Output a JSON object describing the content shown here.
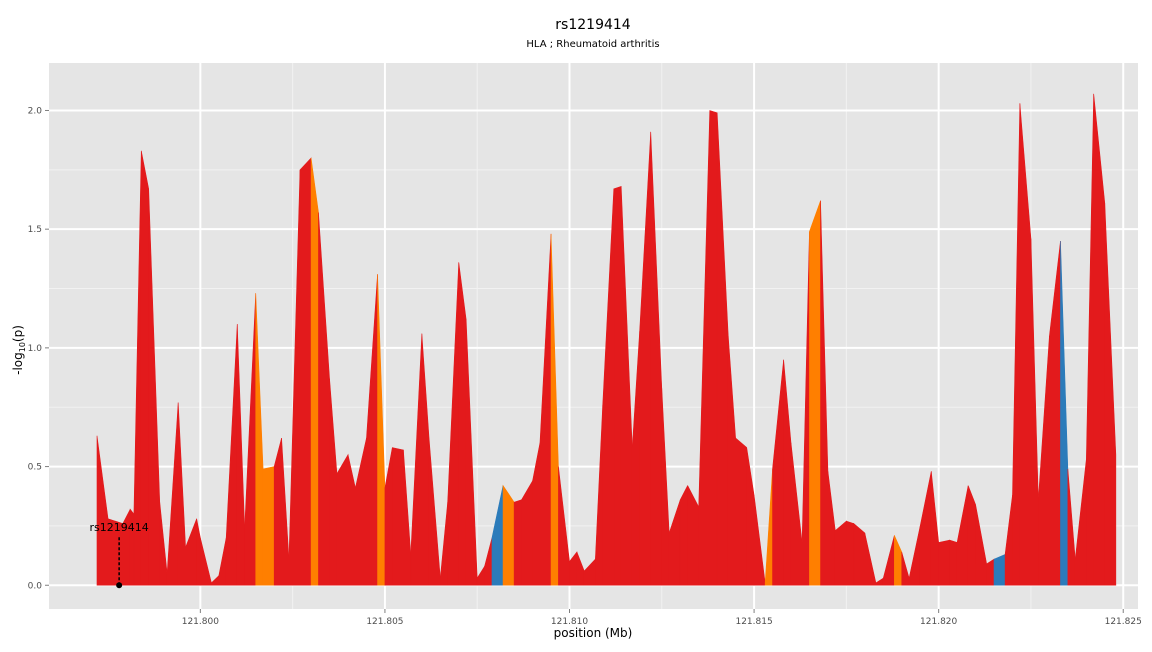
{
  "chart_data": {
    "type": "area",
    "title": "rs1219414",
    "subtitle": "HLA ; Rheumatoid arthritis",
    "xlabel": "position (Mb)",
    "ylabel_main": "-log",
    "ylabel_sub": "10",
    "ylabel_tail": "(p)",
    "xlim": [
      121.7959,
      121.8254
    ],
    "ylim": [
      -0.1,
      2.2
    ],
    "x_ticks": [
      121.8,
      121.805,
      121.81,
      121.815,
      121.82,
      121.825
    ],
    "x_tick_labels": [
      "121.800",
      "121.805",
      "121.810",
      "121.815",
      "121.820",
      "121.825"
    ],
    "y_ticks": [
      0.0,
      0.5,
      1.0,
      1.5,
      2.0
    ],
    "y_tick_labels": [
      "0.0",
      "0.5",
      "1.0",
      "1.5",
      "2.0"
    ],
    "grid": true,
    "colors": {
      "panel": "#e5e5e5",
      "grid_major": "#ffffff",
      "grid_minor": "#f2f2f2",
      "red": "#e31a1c",
      "orange": "#ff7f00",
      "blue": "#2b7bba",
      "text": "#000000",
      "tick_text": "#4d4d4d"
    },
    "points": [
      [
        121.7972,
        0.63,
        "red"
      ],
      [
        121.7975,
        0.28,
        "red"
      ],
      [
        121.7977,
        0.27,
        "red"
      ],
      [
        121.7979,
        0.26,
        "red"
      ],
      [
        121.7981,
        0.32,
        "red"
      ],
      [
        121.7982,
        0.3,
        "red"
      ],
      [
        121.7984,
        1.83,
        "red"
      ],
      [
        121.7986,
        1.67,
        "red"
      ],
      [
        121.7989,
        0.35,
        "red"
      ],
      [
        121.7991,
        0.05,
        "red"
      ],
      [
        121.7994,
        0.77,
        "red"
      ],
      [
        121.7996,
        0.16,
        "red"
      ],
      [
        121.7999,
        0.28,
        "red"
      ],
      [
        121.8,
        0.2,
        "red"
      ],
      [
        121.8003,
        0.01,
        "red"
      ],
      [
        121.8005,
        0.04,
        "red"
      ],
      [
        121.8007,
        0.2,
        "red"
      ],
      [
        121.801,
        1.1,
        "red"
      ],
      [
        121.8012,
        0.24,
        "red"
      ],
      [
        121.8015,
        1.23,
        "orange"
      ],
      [
        121.8017,
        0.49,
        "orange"
      ],
      [
        121.802,
        0.5,
        "red"
      ],
      [
        121.8022,
        0.62,
        "red"
      ],
      [
        121.8024,
        0.11,
        "red"
      ],
      [
        121.8027,
        1.75,
        "red"
      ],
      [
        121.803,
        1.8,
        "orange"
      ],
      [
        121.8032,
        1.57,
        "red"
      ],
      [
        121.8035,
        0.87,
        "red"
      ],
      [
        121.8037,
        0.47,
        "red"
      ],
      [
        121.804,
        0.55,
        "red"
      ],
      [
        121.8042,
        0.41,
        "red"
      ],
      [
        121.8045,
        0.62,
        "red"
      ],
      [
        121.8048,
        1.31,
        "orange"
      ],
      [
        121.805,
        0.41,
        "red"
      ],
      [
        121.8052,
        0.58,
        "red"
      ],
      [
        121.8055,
        0.57,
        "red"
      ],
      [
        121.8057,
        0.13,
        "red"
      ],
      [
        121.806,
        1.06,
        "red"
      ],
      [
        121.8062,
        0.61,
        "red"
      ],
      [
        121.8065,
        0.03,
        "red"
      ],
      [
        121.8067,
        0.35,
        "red"
      ],
      [
        121.807,
        1.36,
        "red"
      ],
      [
        121.8072,
        1.12,
        "red"
      ],
      [
        121.8075,
        0.03,
        "red"
      ],
      [
        121.8077,
        0.08,
        "red"
      ],
      [
        121.8079,
        0.2,
        "blue"
      ],
      [
        121.8082,
        0.42,
        "orange"
      ],
      [
        121.8085,
        0.35,
        "red"
      ],
      [
        121.8087,
        0.36,
        "red"
      ],
      [
        121.809,
        0.44,
        "red"
      ],
      [
        121.8092,
        0.6,
        "red"
      ],
      [
        121.8095,
        1.48,
        "orange"
      ],
      [
        121.8097,
        0.5,
        "red"
      ],
      [
        121.81,
        0.1,
        "red"
      ],
      [
        121.8102,
        0.14,
        "red"
      ],
      [
        121.8104,
        0.06,
        "red"
      ],
      [
        121.8107,
        0.11,
        "red"
      ],
      [
        121.8109,
        0.76,
        "red"
      ],
      [
        121.8112,
        1.67,
        "red"
      ],
      [
        121.8114,
        1.68,
        "red"
      ],
      [
        121.8117,
        0.58,
        "red"
      ],
      [
        121.8119,
        1.07,
        "red"
      ],
      [
        121.8122,
        1.91,
        "red"
      ],
      [
        121.8125,
        0.83,
        "red"
      ],
      [
        121.8127,
        0.22,
        "red"
      ],
      [
        121.813,
        0.36,
        "red"
      ],
      [
        121.8132,
        0.42,
        "red"
      ],
      [
        121.8135,
        0.33,
        "red"
      ],
      [
        121.8138,
        2.0,
        "red"
      ],
      [
        121.814,
        1.99,
        "red"
      ],
      [
        121.8143,
        1.05,
        "red"
      ],
      [
        121.8145,
        0.62,
        "red"
      ],
      [
        121.8148,
        0.58,
        "red"
      ],
      [
        121.815,
        0.38,
        "red"
      ],
      [
        121.8153,
        0.01,
        "orange"
      ],
      [
        121.8155,
        0.49,
        "red"
      ],
      [
        121.8158,
        0.95,
        "red"
      ],
      [
        121.816,
        0.6,
        "red"
      ],
      [
        121.8163,
        0.18,
        "red"
      ],
      [
        121.8165,
        1.49,
        "orange"
      ],
      [
        121.8168,
        1.62,
        "red"
      ],
      [
        121.817,
        0.48,
        "red"
      ],
      [
        121.8172,
        0.23,
        "red"
      ],
      [
        121.8175,
        0.27,
        "red"
      ],
      [
        121.8177,
        0.26,
        "red"
      ],
      [
        121.818,
        0.22,
        "red"
      ],
      [
        121.8183,
        0.01,
        "red"
      ],
      [
        121.8185,
        0.03,
        "red"
      ],
      [
        121.8188,
        0.21,
        "orange"
      ],
      [
        121.819,
        0.14,
        "red"
      ],
      [
        121.8192,
        0.03,
        "red"
      ],
      [
        121.8195,
        0.25,
        "red"
      ],
      [
        121.8198,
        0.48,
        "red"
      ],
      [
        121.82,
        0.18,
        "red"
      ],
      [
        121.8203,
        0.19,
        "red"
      ],
      [
        121.8205,
        0.18,
        "red"
      ],
      [
        121.8208,
        0.42,
        "red"
      ],
      [
        121.821,
        0.34,
        "red"
      ],
      [
        121.8213,
        0.09,
        "red"
      ],
      [
        121.8215,
        0.11,
        "blue"
      ],
      [
        121.8218,
        0.13,
        "red"
      ],
      [
        121.822,
        0.38,
        "red"
      ],
      [
        121.8222,
        2.03,
        "red"
      ],
      [
        121.8225,
        1.46,
        "red"
      ],
      [
        121.8227,
        0.36,
        "red"
      ],
      [
        121.823,
        1.05,
        "red"
      ],
      [
        121.8233,
        1.45,
        "blue"
      ],
      [
        121.8235,
        0.49,
        "red"
      ],
      [
        121.8237,
        0.11,
        "red"
      ],
      [
        121.824,
        0.53,
        "red"
      ],
      [
        121.8242,
        2.07,
        "red"
      ],
      [
        121.8245,
        1.61,
        "red"
      ],
      [
        121.8248,
        0.55,
        "red"
      ]
    ],
    "annotation": {
      "label": "rs1219414",
      "x": 121.7978,
      "y": 0.0,
      "label_y": 0.22
    }
  }
}
